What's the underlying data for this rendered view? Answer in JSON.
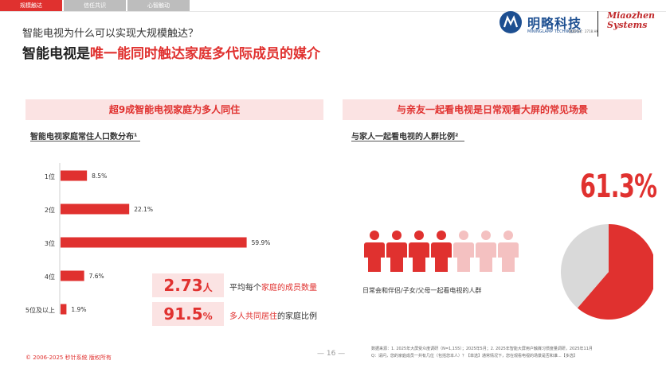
{
  "nav": {
    "tabs": [
      "规模触达",
      "信任共识",
      "心智触动"
    ]
  },
  "header": {
    "question": "智能电视为什么可以实现大规模触达？",
    "headline_pre": "智能电视是",
    "headline_highlight": "唯一能同时触达家庭多代际成员的媒介"
  },
  "logo": {
    "cn": "明略科技",
    "en": "MININGLAMP TECHNOLOGY",
    "code": "股票代码：2718.HK",
    "brand_line1": "Miaozhen",
    "brand_line2": "Systems"
  },
  "left_panel": {
    "title": "超9成智能电视家庭为多人同住",
    "subtitle": "智能电视家庭常住人口数分布¹"
  },
  "right_panel": {
    "title": "与亲友一起看电视是日常观看大屏的常见场景",
    "subtitle": "与家人一起看电视的人群比例²",
    "big_pct": "61.3%",
    "people_caption": "日常会和伴侣/子女/父母一起看电视的人群"
  },
  "stats": [
    {
      "value": "2.73",
      "unit": "人",
      "label_pre": "平均每个",
      "label_hl": "家庭的成员数量",
      "label_post": ""
    },
    {
      "value": "91.5",
      "unit": "%",
      "label_pre": "",
      "label_hl": "多人共同居住",
      "label_post": "的家庭比例"
    }
  ],
  "chart_data": [
    {
      "type": "bar",
      "orientation": "horizontal",
      "title": "智能电视家庭常住人口数分布¹",
      "categories": [
        "1位",
        "2位",
        "3位",
        "4位",
        "5位及以上"
      ],
      "values": [
        8.5,
        22.1,
        59.9,
        7.6,
        1.9
      ],
      "value_labels": [
        "8.5%",
        "22.1%",
        "59.9%",
        "7.6%",
        "1.9%"
      ],
      "unit": "%",
      "xlim": [
        0,
        100
      ],
      "grid": false,
      "color": "#e0312f"
    },
    {
      "type": "pie",
      "title": "与家人一起看电视的人群比例²",
      "values": [
        61.3,
        38.7
      ],
      "value_labels": [
        "61.3%"
      ],
      "colors": [
        "#e0312f",
        "#d9d9d9"
      ]
    }
  ],
  "footer": {
    "copyright": "© 2006-2025 秒针系统 版权所有",
    "page": "— 16 —",
    "source_line1": "数据来源：1. 2025年大屏受众度调研（N=1,155）；2025年5月；2. 2025年智能大屏用户触媒习惯度量调研，2025年11月",
    "source_line2": "Q：请问，您的家庭成员一共有几位（包括您本人）？【单选】通常情况下，您在观看电视的场景是否和谁...【多选】"
  },
  "colors": {
    "accent": "#e0312f",
    "accent_light": "#fbe3e3",
    "people_faded": "#f4c1c1",
    "pie_rest": "#d9d9d9",
    "brand_blue": "#1d4f91"
  }
}
